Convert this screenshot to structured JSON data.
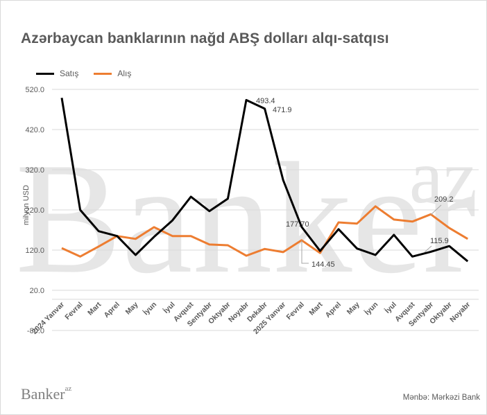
{
  "title": "Azərbaycan banklarının nağd ABŞ dolları alqı-satqısı",
  "legend": [
    {
      "name": "Satış",
      "color": "#000000"
    },
    {
      "name": "Alış",
      "color": "#ED7D31"
    }
  ],
  "watermark": {
    "main": "Banker",
    "super": "az"
  },
  "footer": {
    "logo": "Banker",
    "logo_super": "az",
    "source": "Mənbə: Mərkəzi Bank"
  },
  "chart_data": {
    "type": "line",
    "title": "Azərbaycan banklarının nağd ABŞ dolları alqı-satqısı",
    "xlabel": "",
    "ylabel": "milyon USD",
    "ylim": [
      -80,
      520
    ],
    "yticks": [
      "520.0",
      "420.0",
      "320.0",
      "220.0",
      "120.0",
      "20.0",
      "-80.0"
    ],
    "grid": true,
    "legend_position": "top-left",
    "categories": [
      "2024 Yanvar",
      "Fevral",
      "Mart",
      "Aprel",
      "May",
      "İyun",
      "İyul",
      "Avqust",
      "Sentyabr",
      "Oktyabr",
      "Noyabr",
      "Dekabr",
      "2025 Yanvar",
      "Fevral",
      "Mart",
      "Aprel",
      "May",
      "İyun",
      "İyul",
      "Avqust",
      "Sentyabr",
      "Oktyabr",
      "Noyabr"
    ],
    "series": [
      {
        "name": "Satış",
        "color": "#000000",
        "values": [
          499,
          220,
          167,
          155,
          108,
          153,
          194,
          253,
          217,
          248,
          493.4,
          471.9,
          294,
          177.7,
          118,
          172,
          124,
          108,
          158,
          104,
          115.9,
          130,
          92
        ]
      },
      {
        "name": "Alış",
        "color": "#ED7D31",
        "values": [
          125,
          104,
          129,
          155,
          148,
          177,
          155,
          155,
          134,
          132,
          106,
          123,
          115,
          144.45,
          113,
          189,
          186,
          229,
          196,
          191,
          209.2,
          175,
          148
        ]
      }
    ],
    "annotations": [
      {
        "series": "Satış",
        "category_index": 10,
        "text": "493.4"
      },
      {
        "series": "Satış",
        "category_index": 11,
        "text": "471.9"
      },
      {
        "series": "Satış",
        "category_index": 13,
        "text": "177.70"
      },
      {
        "series": "Alış",
        "category_index": 13,
        "text": "144.45"
      },
      {
        "series": "Alış",
        "category_index": 20,
        "text": "209.2"
      },
      {
        "series": "Satış",
        "category_index": 20,
        "text": "115.9"
      }
    ]
  }
}
